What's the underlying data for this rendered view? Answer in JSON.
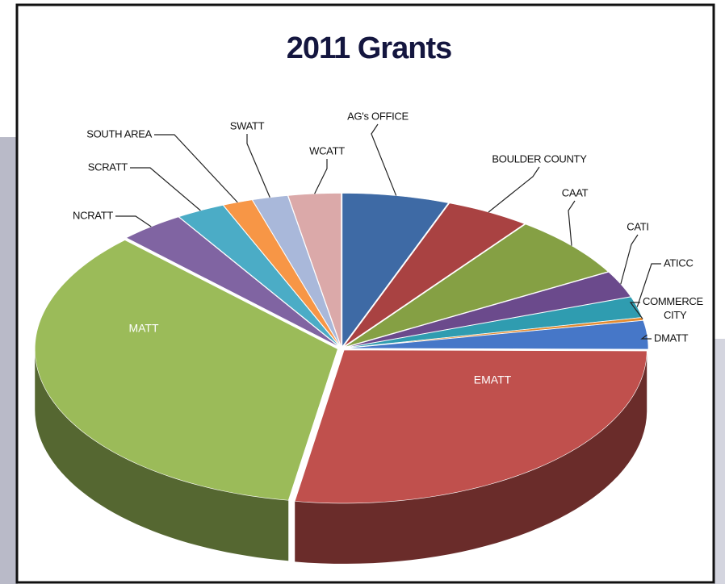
{
  "chart_data": {
    "type": "pie",
    "title": "2011 Grants",
    "categories": [
      "AG's OFFICE",
      "BOULDER COUNTY",
      "CAAT",
      "CATI",
      "ATICC",
      "COMMERCE CITY",
      "DMATT",
      "EMATT",
      "MATT",
      "NCRATT",
      "SCRATT",
      "SOUTH AREA",
      "SWATT",
      "WCATT"
    ],
    "values": [
      5.7,
      4.5,
      6.6,
      2.8,
      2.2,
      0.3,
      3,
      27.5,
      35,
      3.5,
      2.6,
      1.6,
      1.9,
      2.8
    ],
    "colors": [
      "#3e6aa5",
      "#a94242",
      "#85a044",
      "#6b4a8c",
      "#2f9cb0",
      "#e38a2f",
      "#4677c8",
      "#c0504d",
      "#9bbb59",
      "#8064a2",
      "#4bacc6",
      "#f79646",
      "#a9b8da",
      "#dba9a9"
    ]
  }
}
